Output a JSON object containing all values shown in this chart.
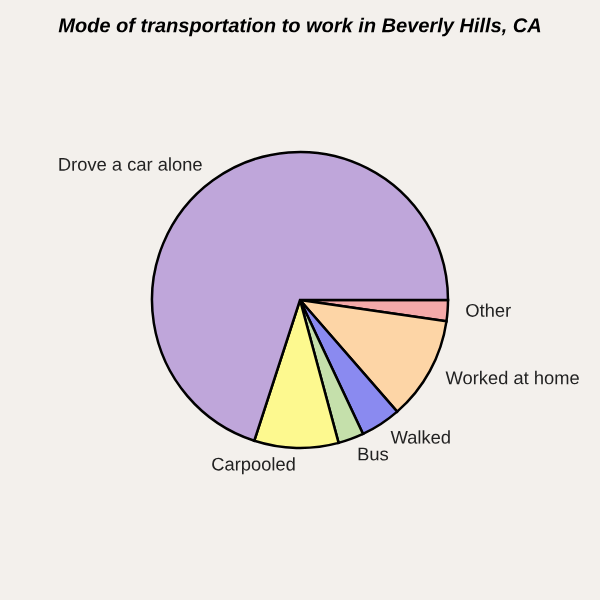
{
  "chart_data": {
    "type": "pie",
    "title": "Mode of transportation to work in Beverly Hills, CA",
    "categories": [
      "Other",
      "Worked at home",
      "Walked",
      "Bus",
      "Carpooled",
      "Drove a car alone"
    ],
    "values": [
      2.3,
      11.3,
      4.4,
      2.8,
      9.2,
      70.0
    ],
    "colors": [
      "#f4a9a9",
      "#fdd5a6",
      "#8a8af0",
      "#c5e0ab",
      "#fdf98f",
      "#bfa6da"
    ]
  }
}
